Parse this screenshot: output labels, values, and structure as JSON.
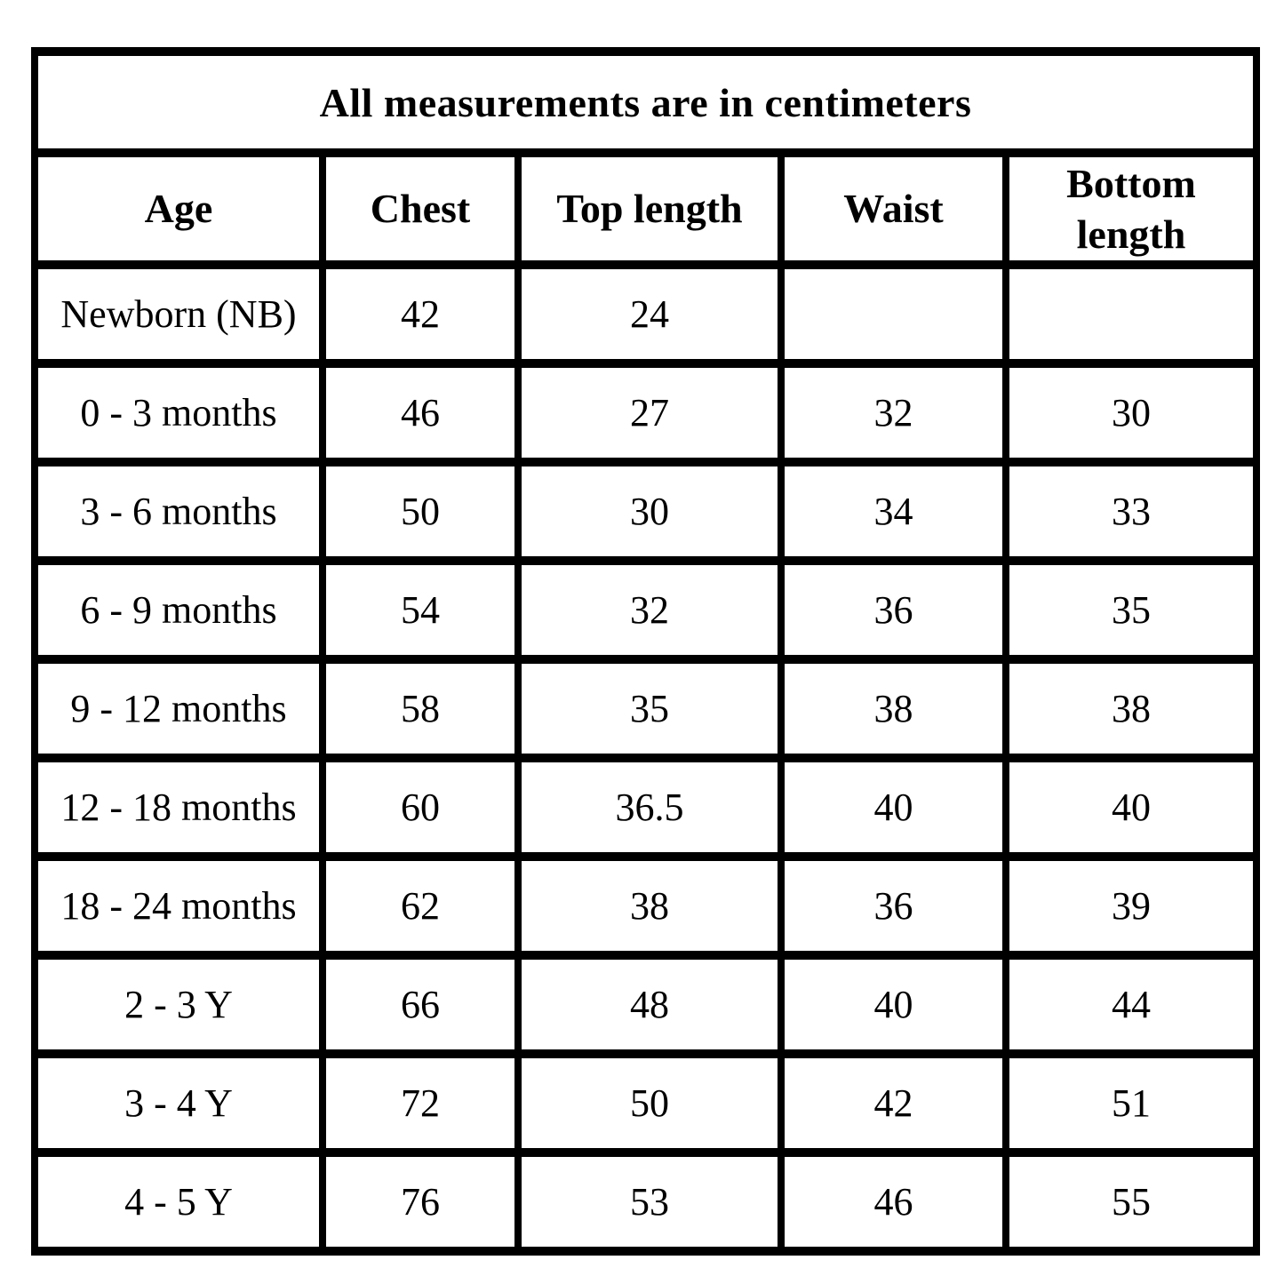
{
  "table": {
    "title": "All measurements are in centimeters",
    "columns": [
      "Age",
      "Chest",
      "Top length",
      "Waist",
      "Bottom length"
    ],
    "rows": [
      {
        "cells": [
          "Newborn (NB)",
          "42",
          "24",
          "",
          ""
        ]
      },
      {
        "cells": [
          "0 - 3 months",
          "46",
          "27",
          "32",
          "30"
        ]
      },
      {
        "cells": [
          "3 - 6 months",
          "50",
          "30",
          "34",
          "33"
        ]
      },
      {
        "cells": [
          "6 - 9 months",
          "54",
          "32",
          "36",
          "35"
        ]
      },
      {
        "cells": [
          "9 - 12 months",
          "58",
          "35",
          "38",
          "38"
        ]
      },
      {
        "cells": [
          "12 - 18 months",
          "60",
          "36.5",
          "40",
          "40"
        ]
      },
      {
        "cells": [
          "18 - 24 months",
          "62",
          "38",
          "36",
          "39"
        ]
      },
      {
        "cells": [
          "2 - 3 Y",
          "66",
          "48",
          "40",
          "44"
        ]
      },
      {
        "cells": [
          "3 - 4 Y",
          "72",
          "50",
          "42",
          "51"
        ]
      },
      {
        "cells": [
          "4 - 5 Y",
          "76",
          "53",
          "46",
          "55"
        ]
      }
    ],
    "colors": {
      "border": "#000000",
      "text": "#000000",
      "background": "#ffffff"
    }
  },
  "chart_data": {
    "type": "table",
    "title": "All measurements are in centimeters",
    "units": "centimeters",
    "columns": [
      "Age",
      "Chest",
      "Top length",
      "Waist",
      "Bottom length"
    ],
    "rows": [
      [
        "Newborn (NB)",
        42,
        24,
        null,
        null
      ],
      [
        "0 - 3 months",
        46,
        27,
        32,
        30
      ],
      [
        "3 - 6 months",
        50,
        30,
        34,
        33
      ],
      [
        "6 - 9 months",
        54,
        32,
        36,
        35
      ],
      [
        "9 - 12 months",
        58,
        35,
        38,
        38
      ],
      [
        "12 - 18 months",
        60,
        36.5,
        40,
        40
      ],
      [
        "18 - 24 months",
        62,
        38,
        36,
        39
      ],
      [
        "2 - 3 Y",
        66,
        48,
        40,
        44
      ],
      [
        "3 - 4 Y",
        72,
        50,
        42,
        51
      ],
      [
        "4 - 5 Y",
        76,
        53,
        46,
        55
      ]
    ],
    "layout": {
      "grid": true,
      "title_position": "top-spanning-row",
      "first_column_align": "left",
      "value_align": "center"
    }
  }
}
